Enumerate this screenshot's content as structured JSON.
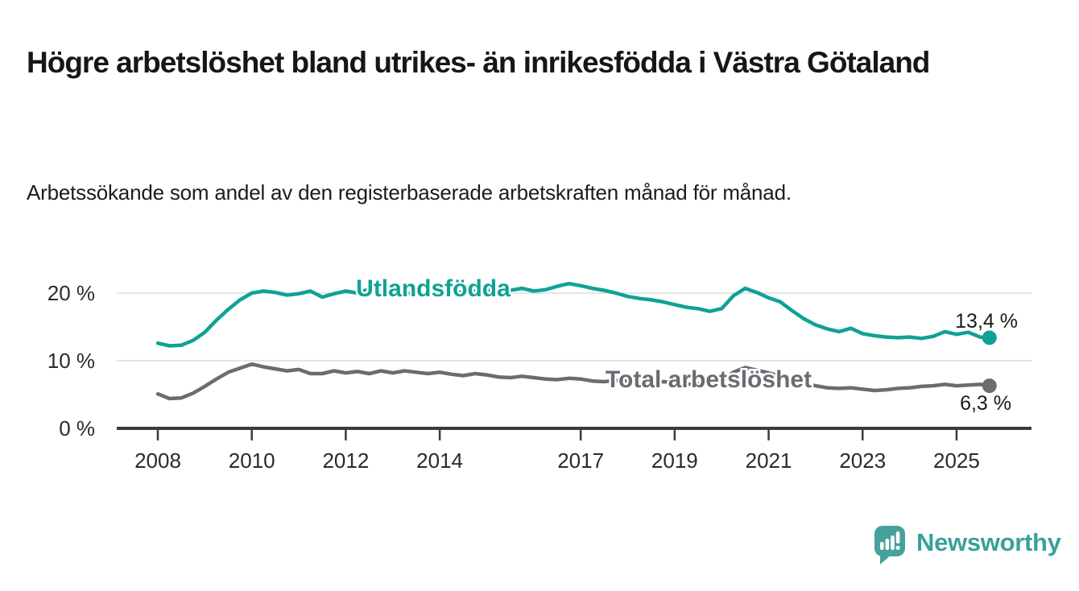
{
  "header": {
    "title": "Högre arbetslöshet bland utrikes- än inrikesfödda i Västra Götaland",
    "subtitle": "Arbetssökande som andel av den registerbaserade arbetskraften månad för månad."
  },
  "branding": {
    "logo_text": "Newsworthy",
    "logo_icon": "speech-bubble-bar-chart-icon",
    "logo_color": "#3aa09b",
    "logo_bubble_color": "#45a19c"
  },
  "colors": {
    "accent_teal": "#0fa294",
    "neutral_gray": "#6e6a72",
    "axis": "#3b3b3b",
    "gridline": "#dcdcdc",
    "text": "#161616"
  },
  "chart_data": {
    "type": "line",
    "title": "",
    "xlabel": "",
    "ylabel": "",
    "x_unit": "decimal_year",
    "xlim": [
      2007.1,
      2026.6
    ],
    "ylim": [
      0,
      22.8
    ],
    "grid": "horizontal",
    "legend_position": "inline-labels",
    "y_ticks": [
      {
        "value": 0,
        "label": "0 %"
      },
      {
        "value": 10,
        "label": "10 %"
      },
      {
        "value": 20,
        "label": "20 %"
      }
    ],
    "x_ticks": [
      2008,
      2010,
      2012,
      2014,
      2017,
      2019,
      2021,
      2023,
      2025
    ],
    "x": [
      2008.0,
      2008.25,
      2008.5,
      2008.75,
      2009.0,
      2009.25,
      2009.5,
      2009.75,
      2010.0,
      2010.25,
      2010.5,
      2010.75,
      2011.0,
      2011.25,
      2011.5,
      2011.75,
      2012.0,
      2012.25,
      2012.5,
      2012.75,
      2013.0,
      2013.25,
      2013.5,
      2013.75,
      2014.0,
      2014.25,
      2014.5,
      2014.75,
      2015.0,
      2015.25,
      2015.5,
      2015.75,
      2016.0,
      2016.25,
      2016.5,
      2016.75,
      2017.0,
      2017.25,
      2017.5,
      2017.75,
      2018.0,
      2018.25,
      2018.5,
      2018.75,
      2019.0,
      2019.25,
      2019.5,
      2019.75,
      2020.0,
      2020.25,
      2020.5,
      2020.75,
      2021.0,
      2021.25,
      2021.5,
      2021.75,
      2022.0,
      2022.25,
      2022.5,
      2022.75,
      2023.0,
      2023.25,
      2023.5,
      2023.75,
      2024.0,
      2024.25,
      2024.5,
      2024.75,
      2025.0,
      2025.25,
      2025.5,
      2025.7
    ],
    "series": [
      {
        "name": "Utlandsfödda",
        "color": "#0fa294",
        "end_label": "13,4 %",
        "end_value": 13.4,
        "values": [
          12.6,
          12.2,
          12.3,
          13.0,
          14.2,
          16.0,
          17.6,
          19.0,
          20.0,
          20.3,
          20.1,
          19.7,
          19.9,
          20.3,
          19.4,
          19.9,
          20.3,
          20.0,
          20.6,
          21.0,
          20.4,
          20.1,
          19.8,
          20.0,
          20.2,
          20.4,
          20.0,
          20.3,
          20.5,
          20.1,
          20.4,
          20.7,
          20.3,
          20.5,
          21.0,
          21.4,
          21.1,
          20.7,
          20.4,
          20.0,
          19.5,
          19.2,
          19.0,
          18.7,
          18.3,
          17.9,
          17.7,
          17.3,
          17.7,
          19.6,
          20.7,
          20.1,
          19.3,
          18.7,
          17.4,
          16.2,
          15.3,
          14.7,
          14.3,
          14.8,
          14.0,
          13.7,
          13.5,
          13.4,
          13.5,
          13.3,
          13.6,
          14.3,
          13.9,
          14.2,
          13.5,
          13.4
        ]
      },
      {
        "name": "Total arbetslöshet",
        "color": "#6e6a72",
        "end_label": "6,3 %",
        "end_value": 6.3,
        "values": [
          5.1,
          4.4,
          4.5,
          5.2,
          6.2,
          7.3,
          8.3,
          8.9,
          9.5,
          9.1,
          8.8,
          8.5,
          8.7,
          8.1,
          8.1,
          8.5,
          8.2,
          8.4,
          8.1,
          8.5,
          8.2,
          8.5,
          8.3,
          8.1,
          8.3,
          8.0,
          7.8,
          8.1,
          7.9,
          7.6,
          7.5,
          7.7,
          7.5,
          7.3,
          7.2,
          7.4,
          7.3,
          7.0,
          6.9,
          7.1,
          7.0,
          6.8,
          6.8,
          6.9,
          6.8,
          6.5,
          6.6,
          6.6,
          6.9,
          8.3,
          9.0,
          8.6,
          8.2,
          7.7,
          7.2,
          6.7,
          6.3,
          6.0,
          5.9,
          6.0,
          5.8,
          5.6,
          5.7,
          5.9,
          6.0,
          6.2,
          6.3,
          6.5,
          6.3,
          6.4,
          6.5,
          6.3
        ]
      }
    ]
  }
}
